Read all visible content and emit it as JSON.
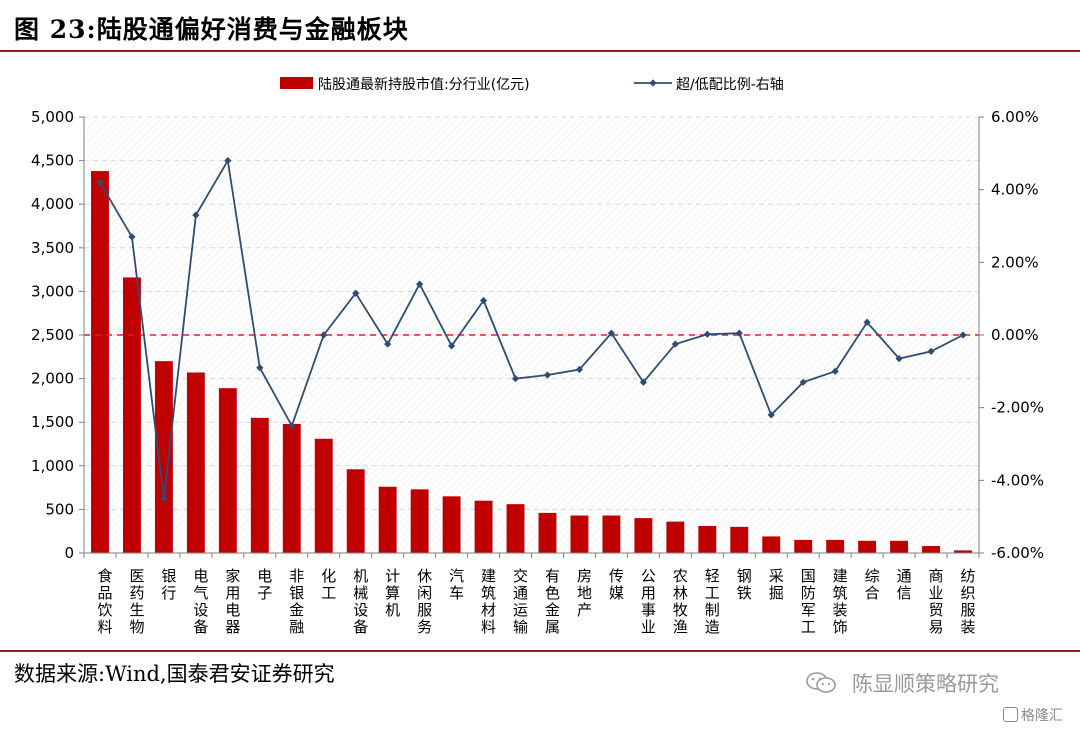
{
  "figure": {
    "title": "图 23:陆股通偏好消费与金融板块",
    "source": "数据来源:Wind,国泰君安证券研究",
    "watermark": "陈显顺策略研究",
    "watermark2": "格隆汇"
  },
  "colors": {
    "bar": "#c00000",
    "line": "#2e4d73",
    "zero_line": "#e02020",
    "rule": "#8c1d1d",
    "grid": "#d9d9d9"
  },
  "chart_data": {
    "type": "bar",
    "categories": [
      "食品饮料",
      "医药生物",
      "银行",
      "电气设备",
      "家用电器",
      "电子",
      "非银金融",
      "化工",
      "机械设备",
      "计算机",
      "休闲服务",
      "汽车",
      "建筑材料",
      "交通运输",
      "有色金属",
      "房地产",
      "传媒",
      "公用事业",
      "农林牧渔",
      "轻工制造",
      "钢铁",
      "采掘",
      "国防军工",
      "建筑装饰",
      "综合",
      "通信",
      "商业贸易",
      "纺织服装"
    ],
    "series": [
      {
        "name": "陆股通最新持股市值:分行业(亿元)",
        "type": "bar",
        "axis": "left",
        "values": [
          4380,
          3160,
          2200,
          2070,
          1890,
          1550,
          1480,
          1310,
          960,
          760,
          730,
          650,
          600,
          560,
          460,
          430,
          430,
          400,
          360,
          310,
          300,
          190,
          150,
          150,
          140,
          140,
          80,
          30
        ]
      },
      {
        "name": "超/低配比例-右轴",
        "type": "line",
        "axis": "right",
        "values": [
          4.2,
          2.7,
          -4.5,
          3.3,
          4.8,
          -0.9,
          -2.5,
          0.0,
          1.15,
          -0.25,
          1.4,
          -0.3,
          0.95,
          -1.2,
          -1.1,
          -0.95,
          0.05,
          -1.3,
          -0.25,
          0.02,
          0.05,
          -2.2,
          -1.3,
          -1.0,
          0.35,
          -0.65,
          -0.45,
          0.0
        ]
      }
    ],
    "y_left": {
      "min": 0,
      "max": 5000,
      "ticks": [
        0,
        500,
        1000,
        1500,
        2000,
        2500,
        3000,
        3500,
        4000,
        4500,
        5000
      ],
      "tick_labels": [
        "0",
        "500",
        "1,000",
        "1,500",
        "2,000",
        "2,500",
        "3,000",
        "3,500",
        "4,000",
        "4,500",
        "5,000"
      ]
    },
    "y_right": {
      "min": -6,
      "max": 6,
      "ticks": [
        -6,
        -4,
        -2,
        0,
        2,
        4,
        6
      ],
      "tick_labels": [
        "-6.00%",
        "-4.00%",
        "-2.00%",
        "0.00%",
        "2.00%",
        "4.00%",
        "6.00%"
      ]
    },
    "legend_position": "top-center",
    "grid": true
  }
}
